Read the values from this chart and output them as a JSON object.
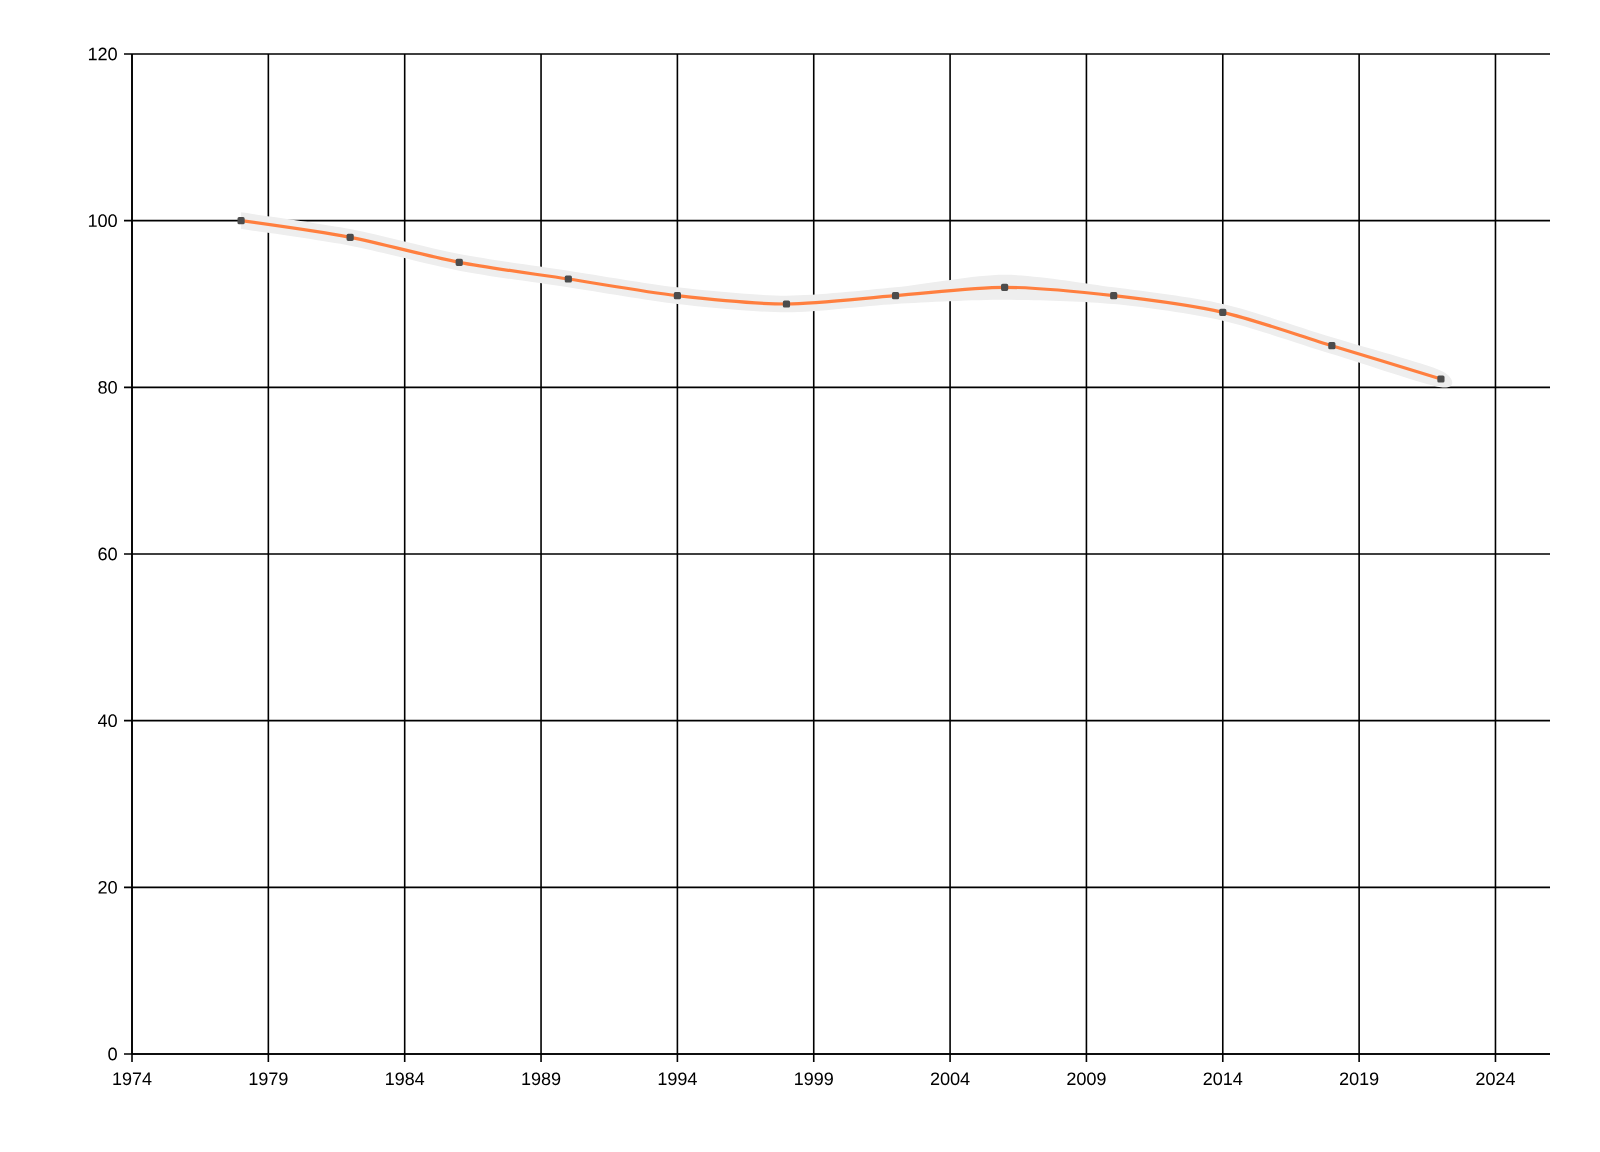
{
  "chart_data": {
    "type": "line",
    "x": [
      1978,
      1982,
      1986,
      1990,
      1994,
      1998,
      2002,
      2006,
      2010,
      2014,
      2018,
      2022
    ],
    "series": [
      {
        "color": "#ff7f3f",
        "values": [
          100,
          98,
          95,
          93,
          91,
          90,
          91,
          92,
          91,
          89,
          85,
          81
        ],
        "lower": [
          99,
          97,
          94,
          92,
          90,
          89,
          90,
          90.5,
          90,
          88,
          84,
          80
        ],
        "upper": [
          101,
          99,
          96,
          94,
          92,
          91,
          92,
          93.5,
          92,
          90,
          86,
          82
        ]
      }
    ],
    "xlim": [
      1974,
      2026
    ],
    "xticks": [
      1974,
      1979,
      1984,
      1989,
      1994,
      1999,
      2004,
      2009,
      2014,
      2019,
      2024
    ],
    "ylim": [
      0,
      120
    ],
    "yticks": [
      0,
      20,
      40,
      60,
      80,
      100,
      120
    ],
    "grid": true,
    "marker": "square",
    "line_style": "solid"
  }
}
